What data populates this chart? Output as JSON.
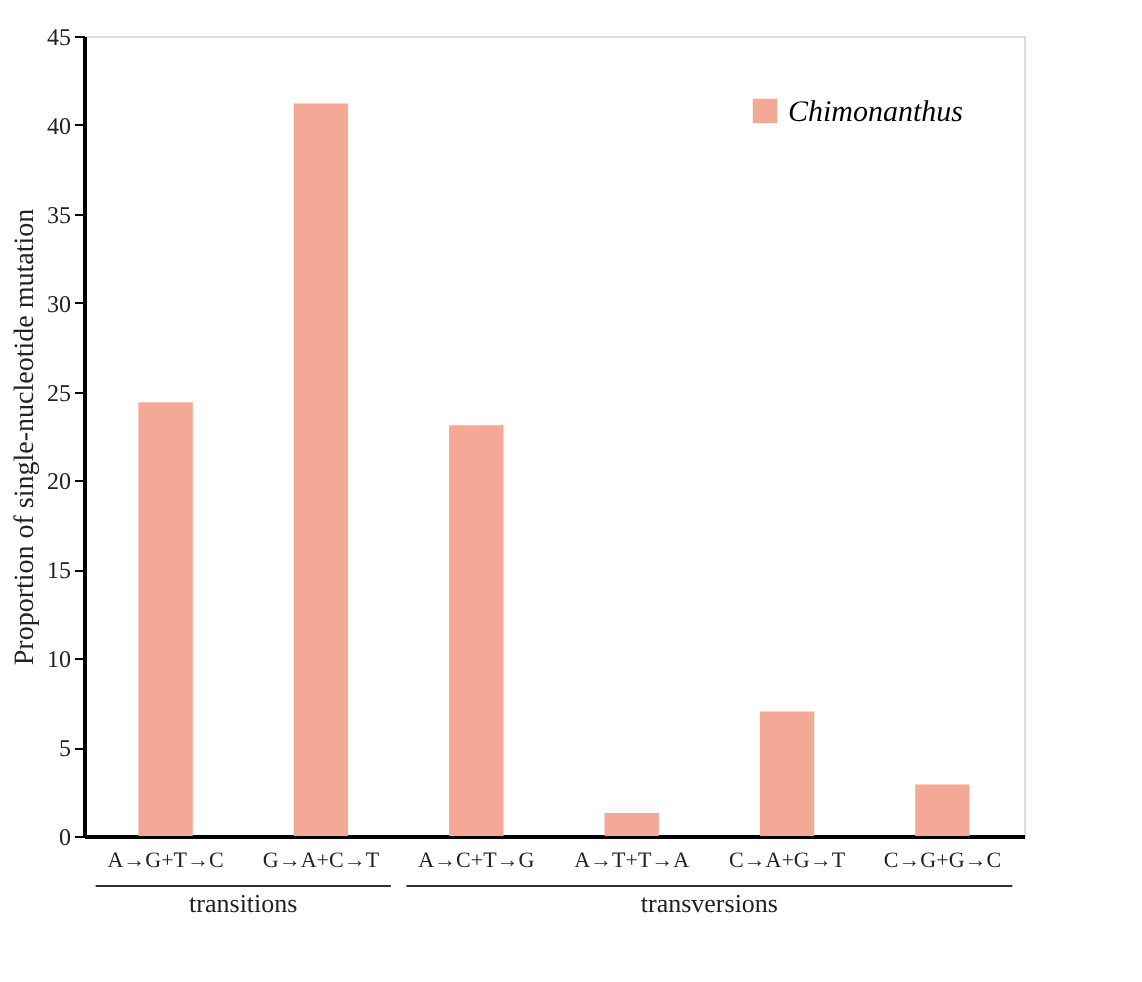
{
  "chart_data": {
    "type": "bar",
    "ylabel": "Proportion of single-nucleotide mutation",
    "categories": [
      "A→G+T→C",
      "G→A+C→T",
      "A→C+T→G",
      "A→T+T→A",
      "C→A+G→T",
      "C→G+G→C"
    ],
    "series": [
      {
        "name": "Chimonanthus",
        "color": "#f4a896",
        "values": [
          24.4,
          41.2,
          23.1,
          1.3,
          7.0,
          2.9
        ]
      }
    ],
    "ylim": [
      0,
      45
    ],
    "yticks": [
      0,
      5,
      10,
      15,
      20,
      25,
      30,
      35,
      40,
      45
    ],
    "grid": false,
    "legend": "top right",
    "annotations": [
      "transitions",
      "transversions"
    ]
  }
}
